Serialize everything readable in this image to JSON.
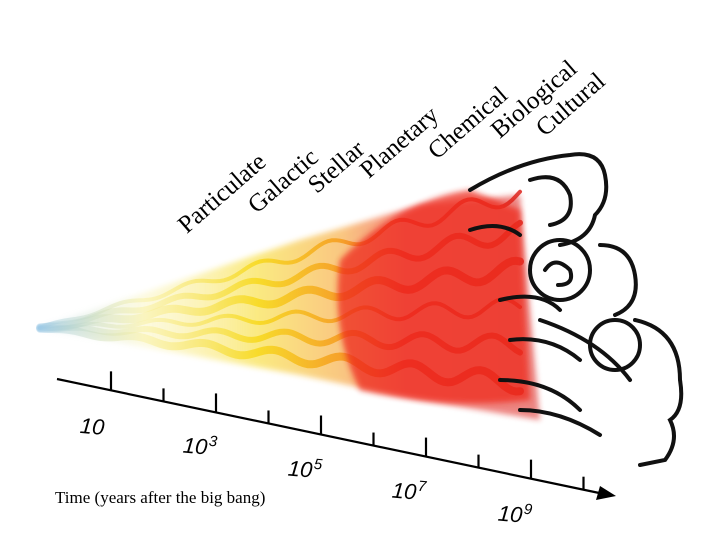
{
  "eras": [
    "Particulate",
    "Galactic",
    "Stellar",
    "Planetary",
    "Chemical",
    "Biological",
    "Cultural"
  ],
  "axis": {
    "title": "Time (years after the big bang)",
    "tick_labels": [
      {
        "base": "10",
        "exp": ""
      },
      {
        "base": "10",
        "exp": "3"
      },
      {
        "base": "10",
        "exp": "5"
      },
      {
        "base": "10",
        "exp": "7"
      },
      {
        "base": "10",
        "exp": "9"
      }
    ]
  },
  "colors": {
    "early": "#8fc3e0",
    "yellow": "#f7d81a",
    "red": "#ee2a1e",
    "ink": "#111111"
  }
}
